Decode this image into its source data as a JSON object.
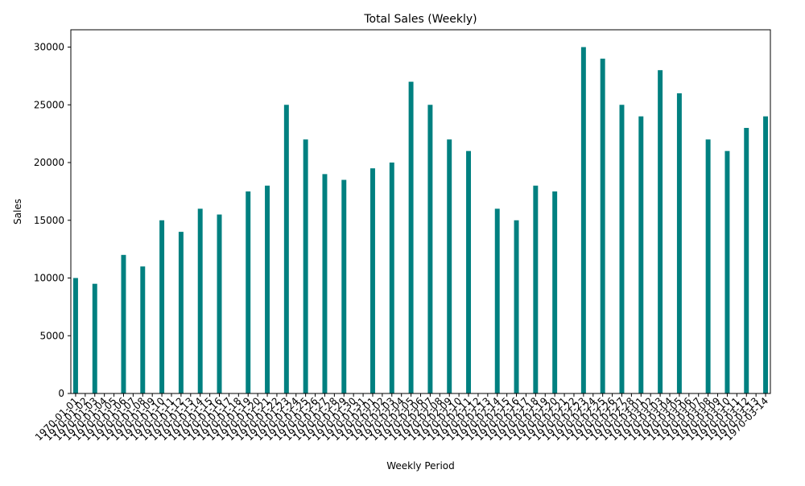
{
  "chart_data": {
    "type": "bar",
    "title": "Total Sales (Weekly)",
    "xlabel": "Weekly Period",
    "ylabel": "Sales",
    "ylim": [
      0,
      31500
    ],
    "yticks": [
      0,
      5000,
      10000,
      15000,
      20000,
      25000,
      30000
    ],
    "grid": false,
    "color": "#008080",
    "categories": [
      "1970-01-01",
      "1970-01-02",
      "1970-01-03",
      "1970-01-04",
      "1970-01-05",
      "1970-01-06",
      "1970-01-07",
      "1970-01-08",
      "1970-01-09",
      "1970-01-10",
      "1970-01-11",
      "1970-01-12",
      "1970-01-13",
      "1970-01-14",
      "1970-01-15",
      "1970-01-16",
      "1970-01-17",
      "1970-01-18",
      "1970-01-19",
      "1970-01-20",
      "1970-01-21",
      "1970-01-22",
      "1970-01-23",
      "1970-01-24",
      "1970-01-25",
      "1970-01-26",
      "1970-01-27",
      "1970-01-28",
      "1970-01-29",
      "1970-01-30",
      "1970-01-31",
      "1970-02-01",
      "1970-02-02",
      "1970-02-03",
      "1970-02-04",
      "1970-02-05",
      "1970-02-06",
      "1970-02-07",
      "1970-02-08",
      "1970-02-09",
      "1970-02-10",
      "1970-02-11",
      "1970-02-12",
      "1970-02-13",
      "1970-02-14",
      "1970-02-15",
      "1970-02-16",
      "1970-02-17",
      "1970-02-18",
      "1970-02-19",
      "1970-02-20",
      "1970-02-21",
      "1970-02-22",
      "1970-02-23",
      "1970-02-24",
      "1970-02-25",
      "1970-02-26",
      "1970-02-27",
      "1970-02-28",
      "1970-03-01",
      "1970-03-02",
      "1970-03-03",
      "1970-03-04",
      "1970-03-05",
      "1970-03-06",
      "1970-03-07",
      "1970-03-08",
      "1970-03-09",
      "1970-03-10",
      "1970-03-11",
      "1970-03-12",
      "1970-03-13",
      "1970-03-14"
    ],
    "values": [
      10000,
      0,
      9500,
      0,
      0,
      12000,
      0,
      11000,
      0,
      15000,
      0,
      14000,
      0,
      16000,
      0,
      15500,
      0,
      0,
      17500,
      0,
      18000,
      0,
      25000,
      0,
      22000,
      0,
      19000,
      0,
      18500,
      0,
      0,
      19500,
      0,
      20000,
      0,
      27000,
      0,
      25000,
      0,
      22000,
      0,
      21000,
      0,
      0,
      16000,
      0,
      15000,
      0,
      18000,
      0,
      17500,
      0,
      0,
      30000,
      0,
      29000,
      0,
      25000,
      0,
      24000,
      0,
      28000,
      0,
      26000,
      0,
      0,
      22000,
      0,
      21000,
      0,
      23000,
      0,
      24000
    ]
  }
}
